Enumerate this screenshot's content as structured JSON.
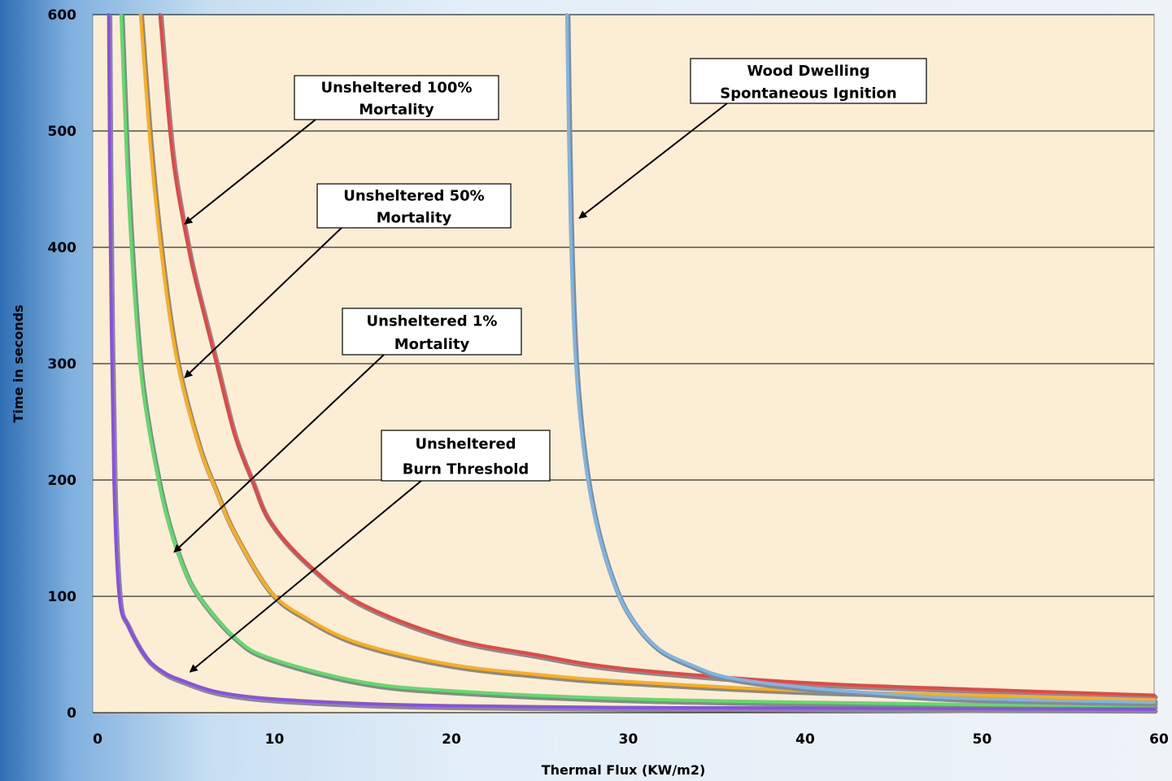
{
  "chart_data": {
    "type": "line",
    "xlabel": "Thermal Flux (KW/m2)",
    "ylabel": "Time in seconds",
    "xlim": [
      0,
      60
    ],
    "ylim": [
      0,
      600
    ],
    "x_ticks": [
      0,
      10,
      20,
      30,
      40,
      50,
      60
    ],
    "y_ticks": [
      0,
      100,
      200,
      300,
      400,
      500,
      600
    ],
    "grid": "horizontal",
    "background_color": "#fbeed5",
    "series": [
      {
        "color": "#e84646",
        "points": [
          [
            3.8,
            600
          ],
          [
            4.5,
            480
          ],
          [
            5.4,
            400
          ],
          [
            6,
            360
          ],
          [
            7,
            300
          ],
          [
            8,
            240
          ],
          [
            9,
            200
          ],
          [
            10,
            165
          ],
          [
            12,
            130
          ],
          [
            15,
            95
          ],
          [
            20,
            65
          ],
          [
            25,
            50
          ],
          [
            30,
            38
          ],
          [
            40,
            26
          ],
          [
            50,
            20
          ],
          [
            60,
            15
          ]
        ]
      },
      {
        "color": "#ffae1a",
        "points": [
          [
            2.7,
            600
          ],
          [
            3.3,
            480
          ],
          [
            4,
            380
          ],
          [
            4.8,
            300
          ],
          [
            6,
            230
          ],
          [
            7,
            190
          ],
          [
            8,
            155
          ],
          [
            10,
            105
          ],
          [
            12,
            82
          ],
          [
            15,
            60
          ],
          [
            20,
            42
          ],
          [
            25,
            33
          ],
          [
            30,
            27
          ],
          [
            40,
            19
          ],
          [
            50,
            15
          ],
          [
            60,
            11
          ]
        ]
      },
      {
        "color": "#5cdd6c",
        "points": [
          [
            1.6,
            600
          ],
          [
            2,
            450
          ],
          [
            2.5,
            330
          ],
          [
            3,
            260
          ],
          [
            4,
            180
          ],
          [
            5,
            130
          ],
          [
            6,
            100
          ],
          [
            8,
            65
          ],
          [
            10,
            47
          ],
          [
            15,
            27
          ],
          [
            20,
            19
          ],
          [
            30,
            12
          ],
          [
            40,
            9
          ],
          [
            50,
            7
          ],
          [
            60,
            6
          ]
        ]
      },
      {
        "color": "#8a4fe8",
        "points": [
          [
            0.9,
            600
          ],
          [
            1,
            400
          ],
          [
            1.2,
            200
          ],
          [
            1.5,
            100
          ],
          [
            2,
            75
          ],
          [
            3,
            48
          ],
          [
            4,
            35
          ],
          [
            5,
            28
          ],
          [
            7,
            18
          ],
          [
            10,
            12
          ],
          [
            15,
            8
          ],
          [
            20,
            6
          ],
          [
            30,
            4.5
          ],
          [
            40,
            4
          ],
          [
            60,
            3
          ]
        ]
      },
      {
        "color": "#7ab6ec",
        "points": [
          [
            26.8,
            600
          ],
          [
            27,
            420
          ],
          [
            27.3,
            300
          ],
          [
            27.8,
            220
          ],
          [
            28.5,
            160
          ],
          [
            29.5,
            110
          ],
          [
            30.5,
            80
          ],
          [
            32,
            55
          ],
          [
            34,
            40
          ],
          [
            36,
            30
          ],
          [
            40,
            22
          ],
          [
            45,
            16
          ],
          [
            50,
            12
          ],
          [
            60,
            9
          ]
        ]
      }
    ],
    "annotations": [
      {
        "lines": [
          "Unsheltered 100%",
          "Mortality"
        ],
        "target": [
          5.2,
          420
        ]
      },
      {
        "lines": [
          "Unsheltered 50%",
          "Mortality"
        ],
        "target": [
          5.2,
          288
        ]
      },
      {
        "lines": [
          "Unsheltered 1%",
          "Mortality"
        ],
        "target": [
          4.6,
          138
        ]
      },
      {
        "lines": [
          "Unsheltered",
          "Burn Threshold"
        ],
        "target": [
          5.5,
          35
        ]
      },
      {
        "lines": [
          "Wood Dwelling",
          "Spontaneous Ignition"
        ],
        "target": [
          27.5,
          425
        ]
      }
    ]
  }
}
